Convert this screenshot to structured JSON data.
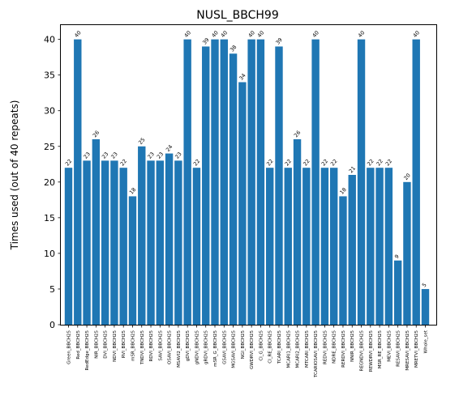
{
  "chart_data": {
    "type": "bar",
    "title": "NUSL_BBCH99",
    "xlabel": "",
    "ylabel": "Times used (out of 40 repeats)",
    "ylim": [
      0,
      42
    ],
    "yticks": [
      0,
      5,
      10,
      15,
      20,
      25,
      30,
      35,
      40
    ],
    "grid": false,
    "bar_color": "#1f77b4",
    "categories": [
      "Green_BBCH25",
      "Red_BBCH25",
      "RedEdge_BBCH25",
      "NIR_BBCH25",
      "DVI_BBCH25",
      "NDVI_BBCH25",
      "RVI_BBCH25",
      "mSR_BBCH25",
      "TNDVI_BBCH25",
      "RDVI_BBCH25",
      "SAVI_BBCH25",
      "OSAVI_BBCH25",
      "MSAVI2_BBCH25",
      "gDVI_BBCH25",
      "gNDVI_BBCH25",
      "gRDVI_BBCH25",
      "mSR_G_BBCH25",
      "GSAVI_BBCH25",
      "MGSAVI_BBCH25",
      "NGI_BBCH25",
      "GWDRVI_BBCH25",
      "CI_G_BBCH25",
      "CI_RE_BBCH25",
      "TCARI_BBCH25",
      "MCARI1_BBCH25",
      "MCARI2_BBCH25",
      "MTCARI_BBCH25",
      "TCARIOSAVI_BBCH25",
      "REDVI_BBCH25",
      "NDRE_BBCH25",
      "RERDVI_BBCH25",
      "NNIR_BBCH25",
      "REGNDVI_BBCH25",
      "REWDRVI_BBCH25",
      "MSR_RE_BBCH25",
      "MEVI_BBCH25",
      "RESAVI_BBCH25",
      "MRESAVI_BBCH25",
      "MRETVI_BBCH25",
      "Whole_set"
    ],
    "values": [
      22,
      40,
      23,
      26,
      23,
      23,
      22,
      18,
      25,
      23,
      23,
      24,
      23,
      40,
      22,
      39,
      40,
      40,
      38,
      34,
      40,
      40,
      22,
      39,
      22,
      26,
      22,
      40,
      22,
      22,
      18,
      21,
      40,
      22,
      22,
      22,
      9,
      20,
      40,
      5
    ]
  }
}
